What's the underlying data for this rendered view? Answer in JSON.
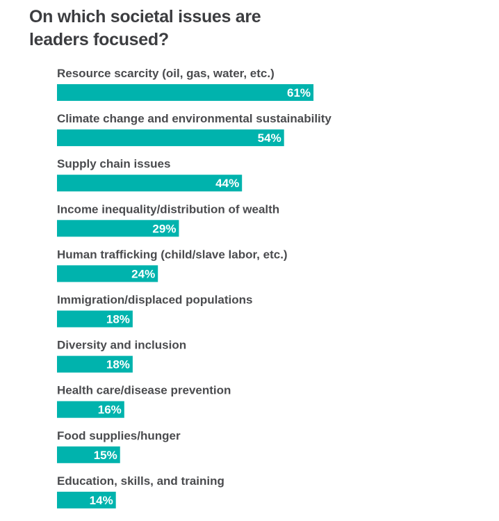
{
  "chart_data": {
    "type": "bar",
    "orientation": "horizontal",
    "title": "On which societal issues are leaders focused?",
    "categories": [
      "Resource scarcity (oil, gas, water, etc.)",
      "Climate change and environmental sustainability",
      "Supply chain issues",
      "Income inequality/distribution of wealth",
      "Human trafficking (child/slave labor, etc.)",
      "Immigration/displaced populations",
      "Diversity and inclusion",
      "Health care/disease prevention",
      "Food supplies/hunger",
      "Education, skills, and training"
    ],
    "values": [
      61,
      54,
      44,
      29,
      24,
      18,
      18,
      16,
      15,
      14
    ],
    "value_labels": [
      "61%",
      "54%",
      "44%",
      "29%",
      "24%",
      "18%",
      "18%",
      "16%",
      "15%",
      "14%"
    ],
    "unit": "%",
    "xlim": [
      0,
      100
    ],
    "grid": false,
    "legend": "none",
    "bar_color": "#00b3ad"
  }
}
